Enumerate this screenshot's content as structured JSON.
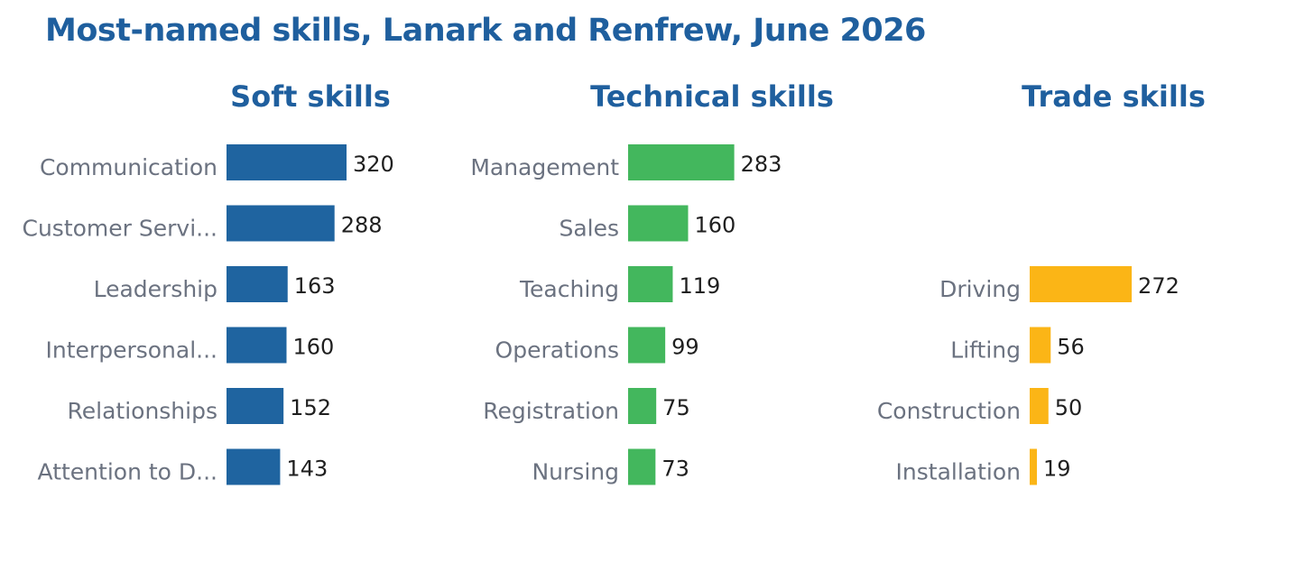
{
  "title": "Most-named skills, Lanark and Renfrew, June 2026",
  "chart_data": [
    {
      "type": "bar",
      "orientation": "horizontal",
      "title": "Soft skills",
      "color": "#1f64a0",
      "categories": [
        "Communication",
        "Customer Servi...",
        "Leadership",
        "Interpersonal...",
        "Relationships",
        "Attention to D..."
      ],
      "values": [
        320,
        288,
        163,
        160,
        152,
        143
      ],
      "value_labels": [
        "320",
        "288",
        "163",
        "160",
        "152",
        "143"
      ],
      "xlim": [
        0,
        1000
      ]
    },
    {
      "type": "bar",
      "orientation": "horizontal",
      "title": "Technical skills",
      "color": "#43b75d",
      "categories": [
        "Management",
        "Sales",
        "Teaching",
        "Operations",
        "Registration",
        "Nursing"
      ],
      "values": [
        283,
        160,
        119,
        99,
        75,
        73
      ],
      "value_labels": [
        "283",
        "160",
        "119",
        "99",
        "75",
        "73"
      ],
      "xlim": [
        0,
        1000
      ]
    },
    {
      "type": "bar",
      "orientation": "horizontal",
      "title": "Trade skills",
      "color": "#fbb516",
      "categories": [
        "",
        "",
        "Driving",
        "Lifting",
        "Construction",
        "Installation"
      ],
      "values": [
        null,
        null,
        272,
        56,
        50,
        19
      ],
      "value_labels": [
        "",
        "",
        "272",
        "56",
        "50",
        "19"
      ],
      "xlim": [
        0,
        1000
      ]
    }
  ]
}
